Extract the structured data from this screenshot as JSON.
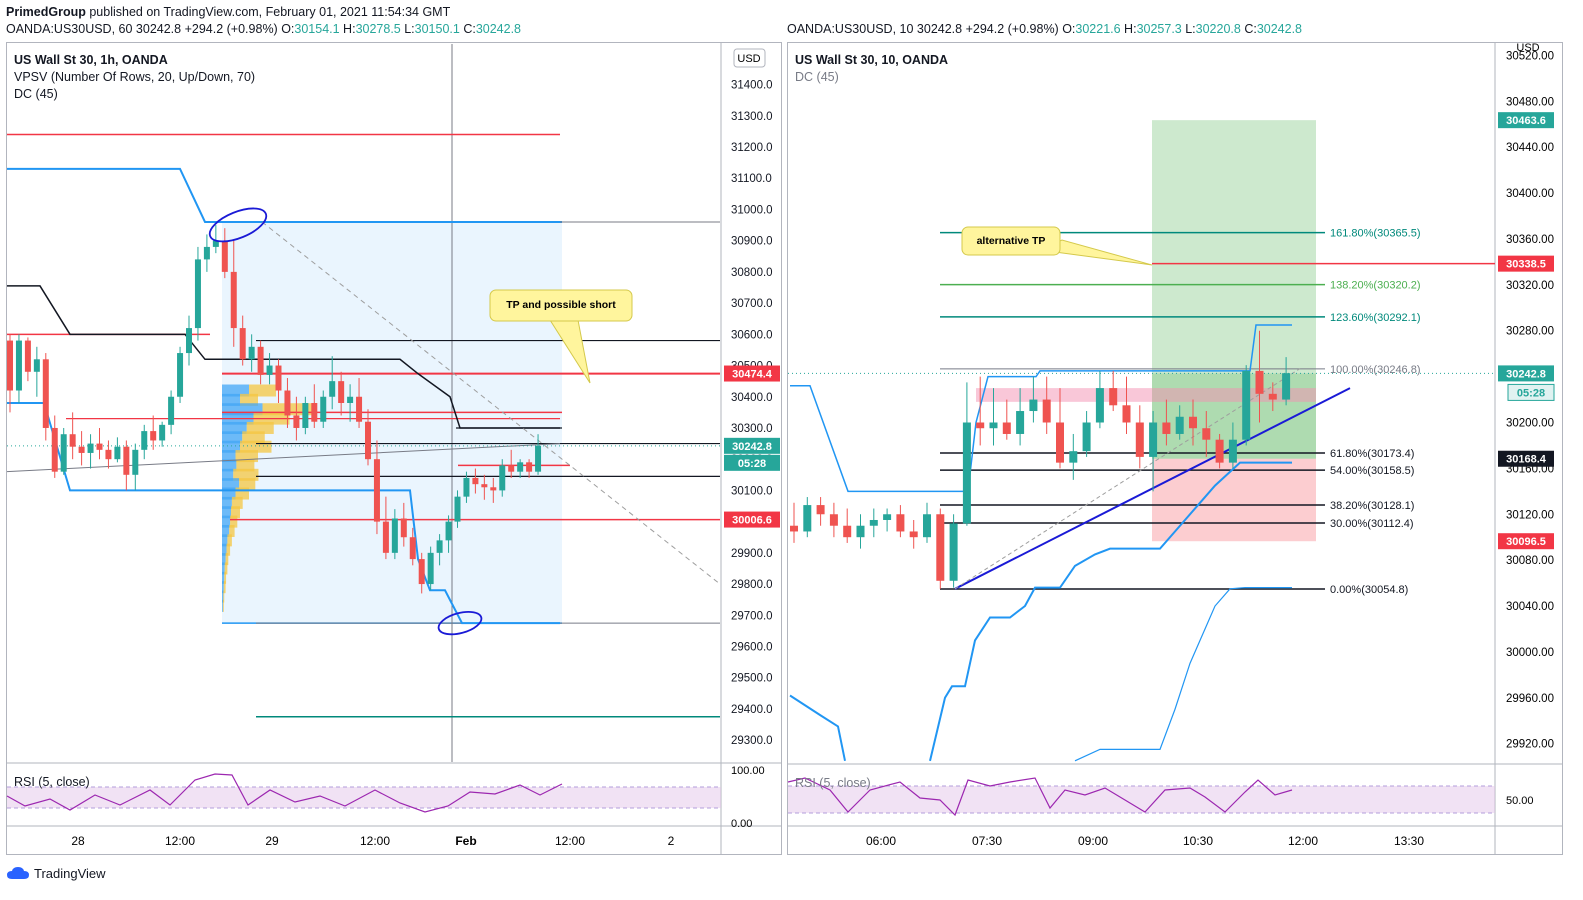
{
  "header": {
    "publisher": "PrimedGroup",
    "published_text": "published on TradingView.com, February 01, 2021 11:54:34 GMT"
  },
  "footer": {
    "brand": "TradingView",
    "logo_icon": "tradingview-cloud-icon"
  },
  "left": {
    "symbol": "OANDA:US30USD, 60",
    "last": "30242.8",
    "change": "+294.2 (+0.98%)",
    "O": "30154.1",
    "H": "30278.5",
    "L": "30150.1",
    "C": "30242.8",
    "title": "US Wall St 30, 1h, OANDA",
    "indicators": [
      "VPSV (Number Of Rows, 20, Up/Down, 70)",
      "DC (45)"
    ],
    "rsi_label": "RSI (5, close)",
    "currency": "USD",
    "annotation": "TP and possible short"
  },
  "right": {
    "symbol": "OANDA:US30USD, 10",
    "last": "30242.8",
    "change": "+294.2 (+0.98%)",
    "O": "30221.6",
    "H": "30257.3",
    "L": "30220.8",
    "C": "30242.8",
    "title": "US Wall St 30, 10, OANDA",
    "indicators": [
      "DC (45)"
    ],
    "rsi_label": "RSI (5, close)",
    "currency": "USD",
    "annotation": "alternative TP"
  },
  "chart_data": [
    {
      "type": "candlestick",
      "title": "US Wall St 30, 1h, OANDA",
      "y_ticks": [
        29300,
        29400,
        29500,
        29600,
        29700,
        29800,
        29900,
        30000,
        30100,
        30200,
        30300,
        30400,
        30500,
        30600,
        30700,
        30800,
        30900,
        31000,
        31100,
        31200,
        31300,
        31400
      ],
      "y_range": [
        29230,
        31530
      ],
      "x_ticks": [
        "28",
        "12:00",
        "29",
        "12:00",
        "Feb",
        "12:00",
        "2"
      ],
      "price_labels": [
        {
          "value": 30474.4,
          "text": "30474.4",
          "color": "#f23645"
        },
        {
          "value": 30242.8,
          "text": "30242.8",
          "color": "#26a69a"
        },
        {
          "value": 30006.6,
          "text": "30006.6",
          "color": "#f23645"
        }
      ],
      "countdown": "05:28",
      "horizontal_levels": [
        {
          "value": 31240,
          "color": "#f23645"
        },
        {
          "value": 30960,
          "color": "#787b86"
        },
        {
          "value": 30580,
          "color": "#131722"
        },
        {
          "value": 30474,
          "color": "#f23645"
        },
        {
          "value": 30350,
          "color": "#f23645"
        },
        {
          "value": 30300,
          "color": "#131722"
        },
        {
          "value": 30250,
          "color": "#131722"
        },
        {
          "value": 30145,
          "color": "#131722"
        },
        {
          "value": 30006.6,
          "color": "#f23645"
        },
        {
          "value": 29675,
          "color": "#787b86"
        },
        {
          "value": 29375,
          "color": "#00897b"
        }
      ],
      "candles": [
        [
          30580,
          30600,
          30350,
          30420
        ],
        [
          30420,
          30600,
          30380,
          30580
        ],
        [
          30580,
          30590,
          30450,
          30480
        ],
        [
          30480,
          30560,
          30400,
          30520
        ],
        [
          30520,
          30540,
          30260,
          30300
        ],
        [
          30300,
          30340,
          30140,
          30160
        ],
        [
          30160,
          30300,
          30150,
          30280
        ],
        [
          30280,
          30350,
          30200,
          30240
        ],
        [
          30240,
          30290,
          30180,
          30220
        ],
        [
          30220,
          30280,
          30170,
          30250
        ],
        [
          30250,
          30300,
          30200,
          30230
        ],
        [
          30230,
          30260,
          30170,
          30200
        ],
        [
          30200,
          30270,
          30190,
          30240
        ],
        [
          30240,
          30260,
          30100,
          30150
        ],
        [
          30150,
          30250,
          30100,
          30230
        ],
        [
          30230,
          30310,
          30200,
          30290
        ],
        [
          30290,
          30340,
          30230,
          30260
        ],
        [
          30260,
          30320,
          30240,
          30310
        ],
        [
          30310,
          30420,
          30280,
          30400
        ],
        [
          30400,
          30560,
          30380,
          30540
        ],
        [
          30540,
          30660,
          30500,
          30620
        ],
        [
          30620,
          30880,
          30580,
          30840
        ],
        [
          30840,
          30920,
          30800,
          30880
        ],
        [
          30880,
          30950,
          30860,
          30900
        ],
        [
          30900,
          30940,
          30780,
          30800
        ],
        [
          30800,
          30900,
          30560,
          30620
        ],
        [
          30620,
          30660,
          30500,
          30520
        ],
        [
          30520,
          30600,
          30480,
          30560
        ],
        [
          30560,
          30580,
          30440,
          30470
        ],
        [
          30470,
          30540,
          30440,
          30500
        ],
        [
          30500,
          30520,
          30380,
          30420
        ],
        [
          30420,
          30460,
          30300,
          30340
        ],
        [
          30340,
          30400,
          30260,
          30300
        ],
        [
          30300,
          30400,
          30280,
          30380
        ],
        [
          30380,
          30440,
          30300,
          30320
        ],
        [
          30320,
          30420,
          30300,
          30400
        ],
        [
          30400,
          30530,
          30360,
          30450
        ],
        [
          30450,
          30480,
          30340,
          30380
        ],
        [
          30380,
          30440,
          30320,
          30400
        ],
        [
          30400,
          30460,
          30300,
          30320
        ],
        [
          30320,
          30360,
          30180,
          30200
        ],
        [
          30200,
          30260,
          29960,
          30000
        ],
        [
          30000,
          30080,
          29880,
          29900
        ],
        [
          29900,
          30040,
          29880,
          30010
        ],
        [
          30010,
          30060,
          29920,
          29950
        ],
        [
          29950,
          29980,
          29860,
          29880
        ],
        [
          29880,
          29900,
          29770,
          29800
        ],
        [
          29800,
          29920,
          29780,
          29900
        ],
        [
          29900,
          29960,
          29860,
          29940
        ],
        [
          29940,
          30020,
          29900,
          30000
        ],
        [
          30000,
          30100,
          29980,
          30080
        ],
        [
          30080,
          30160,
          30060,
          30140
        ],
        [
          30140,
          30170,
          30090,
          30120
        ],
        [
          30120,
          30150,
          30070,
          30110
        ],
        [
          30110,
          30140,
          30060,
          30100
        ],
        [
          30100,
          30200,
          30080,
          30180
        ],
        [
          30180,
          30230,
          30140,
          30160
        ],
        [
          30160,
          30200,
          30140,
          30190
        ],
        [
          30190,
          30200,
          30140,
          30160
        ],
        [
          30160,
          30280,
          30150,
          30243
        ]
      ],
      "rsi_ticks": [
        "100.00",
        "0.00"
      ]
    },
    {
      "type": "candlestick",
      "title": "US Wall St 30, 10, OANDA",
      "y_ticks": [
        29920,
        29960,
        30000,
        30040,
        30080,
        30120,
        30160,
        30200,
        30240,
        30280,
        30320,
        30360,
        30400,
        30440,
        30480,
        30520
      ],
      "y_range": [
        29904,
        30530
      ],
      "x_ticks": [
        "06:00",
        "07:30",
        "09:00",
        "10:30",
        "12:00",
        "13:30"
      ],
      "price_labels": [
        {
          "value": 30463.6,
          "text": "30463.6",
          "color": "#26a69a"
        },
        {
          "value": 30338.5,
          "text": "30338.5",
          "color": "#f23645"
        },
        {
          "value": 30242.8,
          "text": "30242.8",
          "color": "#26a69a"
        },
        {
          "value": 30168.4,
          "text": "30168.4",
          "color": "#131722"
        },
        {
          "value": 30096.5,
          "text": "30096.5",
          "color": "#f23645"
        }
      ],
      "countdown": "05:28",
      "fib_levels": [
        {
          "label": "161.80%(30365.5)",
          "value": 30365.5,
          "color": "#00897b"
        },
        {
          "label": "138.20%(30320.2)",
          "value": 30320.2,
          "color": "#4caf50"
        },
        {
          "label": "123.60%(30292.1)",
          "value": 30292.1,
          "color": "#00897b"
        },
        {
          "label": "100.00%(30246.8)",
          "value": 30246.8,
          "color": "#787b86"
        },
        {
          "label": "61.80%(30173.4)",
          "value": 30173.4,
          "color": "#131722"
        },
        {
          "label": "54.00%(30158.5)",
          "value": 30158.5,
          "color": "#131722"
        },
        {
          "label": "38.20%(30128.1)",
          "value": 30128.1,
          "color": "#131722"
        },
        {
          "label": "30.00%(30112.4)",
          "value": 30112.4,
          "color": "#131722"
        },
        {
          "label": "0.00%(30054.8)",
          "value": 30054.8,
          "color": "#131722"
        }
      ],
      "candles": [
        [
          30110,
          30130,
          30095,
          30105
        ],
        [
          30105,
          30135,
          30100,
          30128
        ],
        [
          30128,
          30135,
          30110,
          30120
        ],
        [
          30120,
          30130,
          30100,
          30110
        ],
        [
          30110,
          30125,
          30095,
          30100
        ],
        [
          30100,
          30120,
          30090,
          30110
        ],
        [
          30110,
          30125,
          30100,
          30115
        ],
        [
          30115,
          30125,
          30105,
          30120
        ],
        [
          30120,
          30128,
          30100,
          30105
        ],
        [
          30105,
          30115,
          30090,
          30100
        ],
        [
          30100,
          30130,
          30095,
          30120
        ],
        [
          30120,
          30125,
          30055,
          30062
        ],
        [
          30062,
          30120,
          30056,
          30112
        ],
        [
          30112,
          30235,
          30110,
          30200
        ],
        [
          30200,
          30240,
          30180,
          30195
        ],
        [
          30195,
          30230,
          30180,
          30200
        ],
        [
          30200,
          30220,
          30185,
          30190
        ],
        [
          30190,
          30230,
          30180,
          30210
        ],
        [
          30210,
          30240,
          30200,
          30220
        ],
        [
          30220,
          30240,
          30190,
          30200
        ],
        [
          30200,
          30230,
          30160,
          30165
        ],
        [
          30165,
          30190,
          30150,
          30175
        ],
        [
          30175,
          30210,
          30170,
          30200
        ],
        [
          30200,
          30245,
          30195,
          30230
        ],
        [
          30230,
          30245,
          30210,
          30215
        ],
        [
          30215,
          30240,
          30190,
          30200
        ],
        [
          30200,
          30215,
          30160,
          30170
        ],
        [
          30170,
          30210,
          30140,
          30200
        ],
        [
          30200,
          30220,
          30180,
          30190
        ],
        [
          30190,
          30215,
          30185,
          30205
        ],
        [
          30205,
          30220,
          30180,
          30195
        ],
        [
          30195,
          30210,
          30170,
          30185
        ],
        [
          30185,
          30190,
          30160,
          30165
        ],
        [
          30165,
          30200,
          30160,
          30185
        ],
        [
          30185,
          30250,
          30180,
          30245
        ],
        [
          30245,
          30280,
          30200,
          30225
        ],
        [
          30225,
          30235,
          30210,
          30220
        ],
        [
          30220,
          30257,
          30215,
          30243
        ]
      ],
      "rsi_ticks": [
        "50.00"
      ]
    }
  ]
}
